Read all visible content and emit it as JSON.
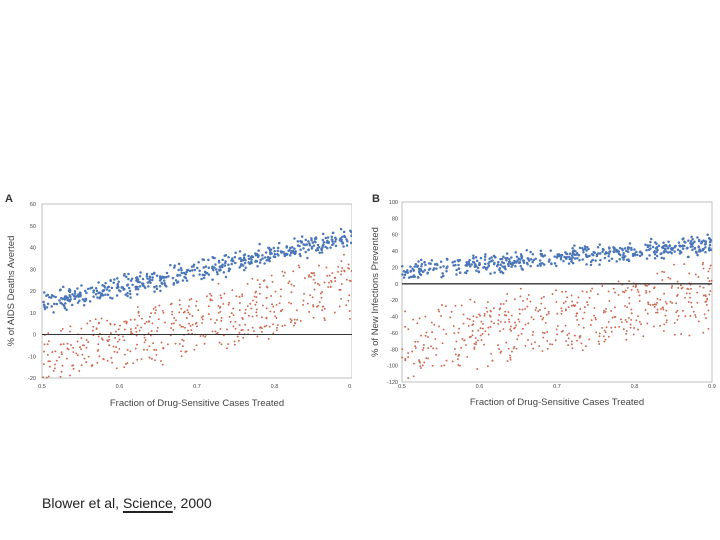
{
  "colors": {
    "blue": "#4a76b8",
    "red": "#cc6a52",
    "frame": "#bfbfbf",
    "zero_line": "#333333"
  },
  "citation": {
    "prefix": "Blower et al, ",
    "journal": "Science",
    "suffix": ", 2000"
  },
  "chart_data": [
    {
      "type": "scatter",
      "panel": "A",
      "xlabel": "Fraction of Drug-Sensitive Cases Treated",
      "ylabel": "% of AIDS Deaths Averted",
      "xlim": [
        0.5,
        0.9
      ],
      "ylim": [
        -20,
        60
      ],
      "xticks": [
        0.5,
        0.6,
        0.7,
        0.8,
        0.9
      ],
      "xtick_labels": [
        "0.5",
        "0.6",
        "0.7",
        "0.8",
        "0.9"
      ],
      "yticks": [
        60,
        50,
        40,
        30,
        20,
        10,
        0,
        -10,
        -20
      ],
      "ytick_labels": [
        "60",
        "50",
        "40",
        "30",
        "20",
        "10",
        "0",
        "-10",
        "-20"
      ],
      "zero_line": 0,
      "n_points_per_series": 500,
      "series": [
        {
          "name": "blue",
          "y_trend_at_xmin": 14,
          "y_trend_at_xmax": 45,
          "spread": 6
        },
        {
          "name": "red",
          "y_trend_at_xmin": 0,
          "y_trend_at_xmax": 35,
          "spread": 24
        }
      ]
    },
    {
      "type": "scatter",
      "panel": "B",
      "xlabel": "Fraction of Drug-Sensitive Cases Treated",
      "ylabel": "% of New Infections Prevented",
      "xlim": [
        0.5,
        0.9
      ],
      "ylim": [
        -120,
        100
      ],
      "xticks": [
        0.5,
        0.6,
        0.7,
        0.8,
        0.9
      ],
      "xtick_labels": [
        "0.5",
        "0.6",
        "0.7",
        "0.8",
        "0.9"
      ],
      "yticks": [
        100,
        80,
        60,
        40,
        20,
        0,
        -20,
        -40,
        -60,
        -80,
        -100,
        -120
      ],
      "ytick_labels": [
        "100",
        "80",
        "60",
        "40",
        "20",
        "0",
        "-20",
        "-40",
        "-60",
        "-80",
        "-100",
        "-120"
      ],
      "zero_line": 0,
      "n_points_per_series": 500,
      "series": [
        {
          "name": "blue",
          "y_trend_at_xmin": 15,
          "y_trend_at_xmax": 48,
          "spread": 14
        },
        {
          "name": "red",
          "y_trend_at_xmin": -40,
          "y_trend_at_xmax": 20,
          "spread": 70
        }
      ]
    }
  ]
}
